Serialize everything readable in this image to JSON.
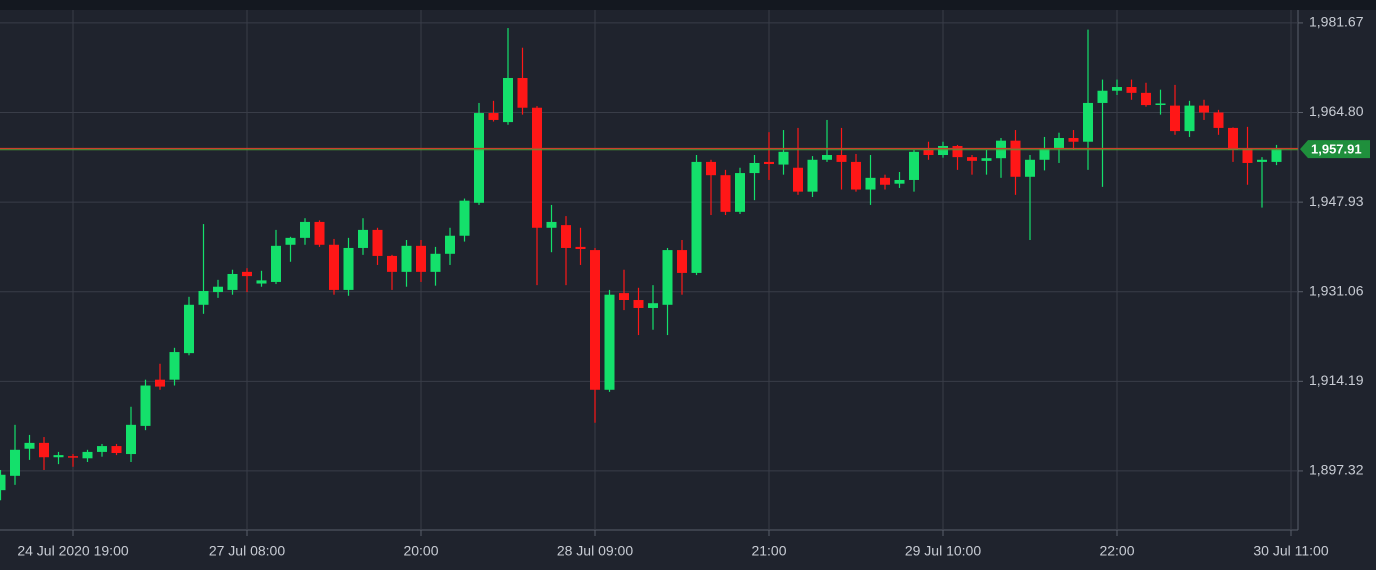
{
  "chart_data": {
    "type": "candlestick",
    "categories": [
      null,
      null,
      null,
      null,
      null,
      "24 Jul 2020 19:00",
      null,
      null,
      null,
      null,
      null,
      null,
      null,
      null,
      null,
      null,
      null,
      "27 Jul 08:00",
      null,
      null,
      null,
      null,
      null,
      null,
      null,
      null,
      null,
      null,
      null,
      "20:00",
      null,
      null,
      null,
      null,
      null,
      null,
      null,
      null,
      null,
      null,
      null,
      "28 Jul 09:00",
      null,
      null,
      null,
      null,
      null,
      null,
      null,
      null,
      null,
      null,
      null,
      "21:00",
      null,
      null,
      null,
      null,
      null,
      null,
      null,
      null,
      null,
      null,
      null,
      "29 Jul 10:00",
      null,
      null,
      null,
      null,
      null,
      null,
      null,
      null,
      null,
      null,
      null,
      "22:00",
      null,
      null,
      null,
      null,
      null,
      null,
      null,
      null,
      null,
      null,
      null,
      "30 Jul 11:00"
    ],
    "open": [
      1893.7,
      1896.4,
      1901.5,
      1902.6,
      1899.9,
      1900.1,
      1899.7,
      1900.9,
      1902.0,
      1900.5,
      1905.8,
      1914.5,
      1914.5,
      1919.5,
      1928.6,
      1931.0,
      1931.4,
      1934.8,
      1932.6,
      1932.9,
      1939.9,
      1941.2,
      1944.2,
      1939.9,
      1931.4,
      1939.3,
      1942.7,
      1937.8,
      1934.8,
      1939.7,
      1934.8,
      1938.2,
      1941.6,
      1947.8,
      1964.7,
      1963.0,
      1971.3,
      1965.7,
      1943.1,
      1943.6,
      1939.5,
      1938.9,
      1912.6,
      1930.8,
      1929.5,
      1928.0,
      1928.6,
      1938.9,
      1934.6,
      1955.5,
      1953.0,
      1946.1,
      1953.4,
      1955.5,
      1955.0,
      1954.4,
      1949.9,
      1955.9,
      1956.8,
      1955.5,
      1950.3,
      1952.5,
      1951.4,
      1952.1,
      1957.8,
      1956.8,
      1958.5,
      1956.4,
      1955.7,
      1956.2,
      1959.5,
      1952.7,
      1955.9,
      1958.1,
      1960.0,
      1959.3,
      1966.6,
      1968.9,
      1969.6,
      1968.5,
      1966.3,
      1966.1,
      1961.3,
      1966.1,
      1964.8,
      1961.9,
      1958.1,
      1955.5,
      1955.5,
      null
    ],
    "high": [
      1897.5,
      1906.0,
      1904.1,
      1903.7,
      1900.9,
      1900.5,
      1901.3,
      1902.4,
      1902.4,
      1909.4,
      1914.5,
      1917.5,
      1920.5,
      1930.1,
      1943.8,
      1933.3,
      1935.2,
      1935.5,
      1935.0,
      1942.7,
      1941.4,
      1944.9,
      1944.5,
      1941.0,
      1941.2,
      1944.9,
      1943.1,
      1938.0,
      1940.8,
      1940.8,
      1939.5,
      1943.1,
      1948.6,
      1966.6,
      1967.0,
      1980.7,
      1977.0,
      1966.0,
      1947.4,
      1945.3,
      1943.1,
      1939.3,
      1931.4,
      1935.2,
      1931.8,
      1932.3,
      1939.3,
      1940.8,
      1956.8,
      1955.9,
      1954.0,
      1954.4,
      1956.8,
      1961.1,
      1961.5,
      1961.9,
      1956.6,
      1963.4,
      1961.9,
      1957.0,
      1956.8,
      1953.1,
      1953.6,
      1957.8,
      1959.3,
      1959.3,
      1958.7,
      1956.8,
      1957.8,
      1960.0,
      1961.5,
      1956.8,
      1960.2,
      1961.0,
      1961.5,
      1980.4,
      1971.0,
      1971.0,
      1971.0,
      1970.4,
      1969.1,
      1970.0,
      1967.0,
      1967.2,
      1965.3,
      1962.0,
      1962.1,
      1956.4,
      1958.7,
      null
    ],
    "low": [
      1891.8,
      1894.7,
      1899.4,
      1897.5,
      1898.6,
      1898.1,
      1899.0,
      1900.0,
      1900.3,
      1899.0,
      1905.0,
      1912.6,
      1913.4,
      1919.1,
      1926.9,
      1929.9,
      1930.5,
      1931.0,
      1932.0,
      1932.5,
      1936.7,
      1939.9,
      1939.5,
      1930.5,
      1930.3,
      1938.0,
      1936.1,
      1931.4,
      1932.0,
      1932.9,
      1932.2,
      1936.1,
      1940.5,
      1947.4,
      1963.1,
      1962.5,
      1964.4,
      1932.3,
      1938.5,
      1932.3,
      1936.1,
      1906.4,
      1912.2,
      1927.6,
      1922.9,
      1923.9,
      1922.9,
      1930.5,
      1934.2,
      1945.5,
      1945.5,
      1945.7,
      1948.3,
      1952.1,
      1953.1,
      1949.3,
      1948.9,
      1955.5,
      1950.3,
      1949.9,
      1947.4,
      1950.3,
      1950.6,
      1949.9,
      1955.9,
      1956.3,
      1954.0,
      1953.1,
      1953.1,
      1952.5,
      1949.3,
      1940.8,
      1953.9,
      1955.3,
      1957.8,
      1954.0,
      1950.8,
      1968.1,
      1967.2,
      1965.9,
      1964.4,
      1960.6,
      1960.2,
      1963.4,
      1960.6,
      1955.5,
      1951.2,
      1946.9,
      1954.9,
      null
    ],
    "close": [
      1896.6,
      1901.3,
      1902.6,
      1899.9,
      1900.3,
      1899.9,
      1900.9,
      1902.0,
      1900.7,
      1906.0,
      1913.4,
      1913.2,
      1919.7,
      1928.6,
      1931.2,
      1932.0,
      1934.4,
      1934.0,
      1933.2,
      1939.7,
      1941.2,
      1944.2,
      1939.9,
      1931.4,
      1939.3,
      1942.7,
      1937.8,
      1934.8,
      1939.7,
      1934.8,
      1938.2,
      1941.6,
      1948.2,
      1964.7,
      1963.4,
      1971.3,
      1965.7,
      1943.1,
      1944.2,
      1939.3,
      1939.1,
      1912.6,
      1930.5,
      1929.5,
      1928.0,
      1928.9,
      1938.9,
      1934.6,
      1955.5,
      1953.0,
      1946.1,
      1953.4,
      1955.3,
      1955.1,
      1957.4,
      1949.9,
      1955.9,
      1956.8,
      1955.5,
      1950.3,
      1952.5,
      1951.2,
      1952.1,
      1957.4,
      1956.8,
      1958.5,
      1956.4,
      1955.7,
      1956.2,
      1959.5,
      1952.7,
      1955.9,
      1958.1,
      1960.0,
      1959.3,
      1966.6,
      1968.9,
      1969.6,
      1968.5,
      1966.2,
      1966.5,
      1961.3,
      1966.1,
      1964.8,
      1961.9,
      1957.8,
      1955.3,
      1955.9,
      1957.91,
      null
    ],
    "up_color": "#14e06b",
    "down_color": "#ff1717",
    "ylim": [
      1886.2,
      1984.1
    ],
    "yticks": [
      {
        "value": 1897.32,
        "label": "1,897.32"
      },
      {
        "value": 1914.19,
        "label": "1,914.19"
      },
      {
        "value": 1931.06,
        "label": "1,931.06"
      },
      {
        "value": 1947.93,
        "label": "1,947.93"
      },
      {
        "value": 1964.8,
        "label": "1,964.80"
      },
      {
        "value": 1981.67,
        "label": "1,981.67"
      }
    ],
    "last_price": {
      "value": 1957.91,
      "label": "1,957.91"
    },
    "grid": true
  }
}
